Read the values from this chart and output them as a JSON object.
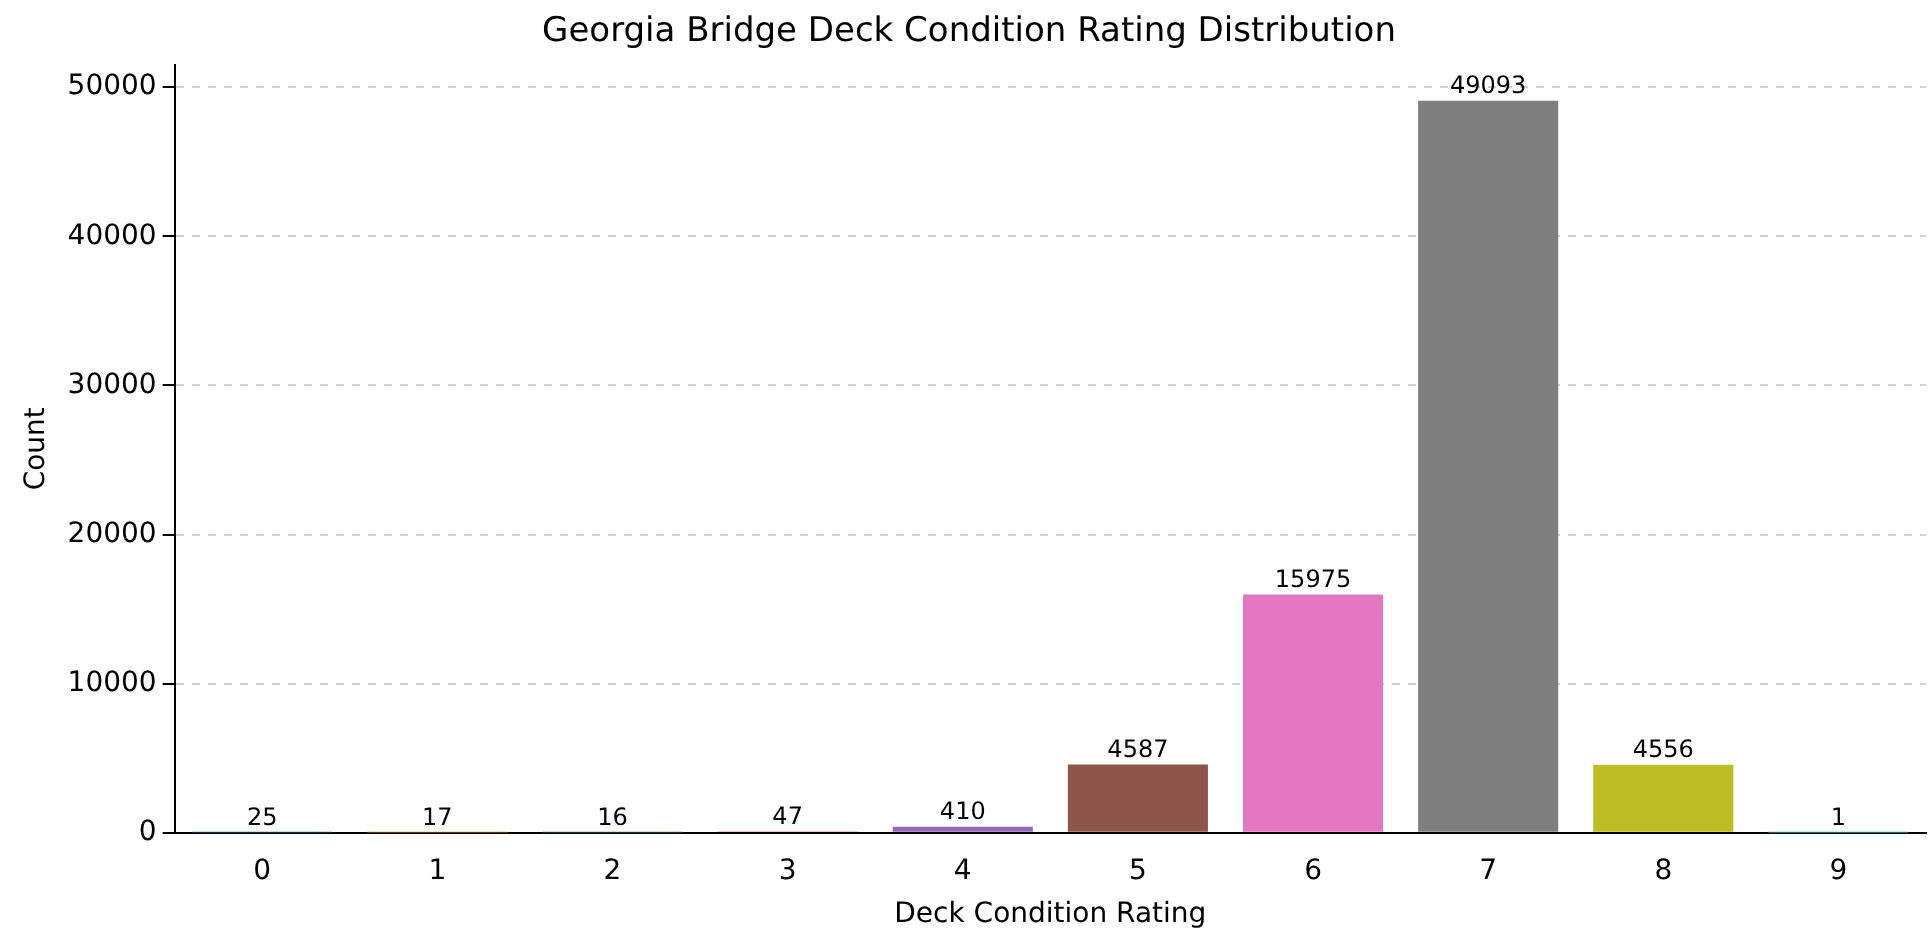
{
  "chart_data": {
    "type": "bar",
    "title": "Georgia Bridge Deck Condition Rating Distribution",
    "xlabel": "Deck Condition Rating",
    "ylabel": "Count",
    "categories": [
      "0",
      "1",
      "2",
      "3",
      "4",
      "5",
      "6",
      "7",
      "8",
      "9"
    ],
    "values": [
      25,
      17,
      16,
      47,
      410,
      4587,
      15975,
      49093,
      4556,
      1
    ],
    "colors": [
      "#1f77b4",
      "#ff7f0e",
      "#2ca02c",
      "#d62728",
      "#9467bd",
      "#8c564b",
      "#e377c2",
      "#7f7f7f",
      "#bcbd22",
      "#17becf"
    ],
    "ylim": [
      0,
      51500
    ],
    "yticks": [
      0,
      10000,
      20000,
      30000,
      40000,
      50000
    ],
    "grid": "y",
    "data_labels": true,
    "legend": false
  }
}
